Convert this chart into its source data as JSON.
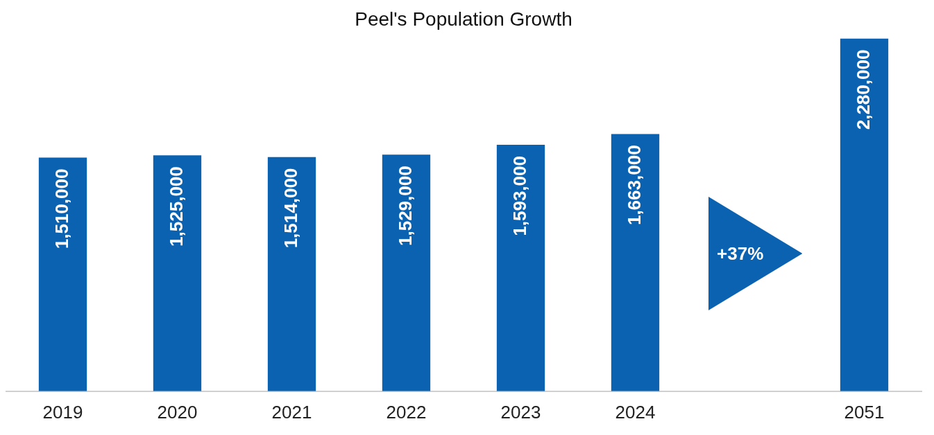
{
  "chart_data": {
    "type": "bar",
    "title": "Peel's Population Growth",
    "categories": [
      "2019",
      "2020",
      "2021",
      "2022",
      "2023",
      "2024",
      null,
      "2051"
    ],
    "values": [
      1510000,
      1525000,
      1514000,
      1529000,
      1593000,
      1663000,
      null,
      2280000
    ],
    "color": "#0a62b0",
    "value_labels": [
      "1,510,000",
      "1,525,000",
      "1,514,000",
      "1,529,000",
      "1,593,000",
      "1,663,000",
      null,
      "2,280,000"
    ],
    "annotations": [
      "+37%"
    ]
  }
}
